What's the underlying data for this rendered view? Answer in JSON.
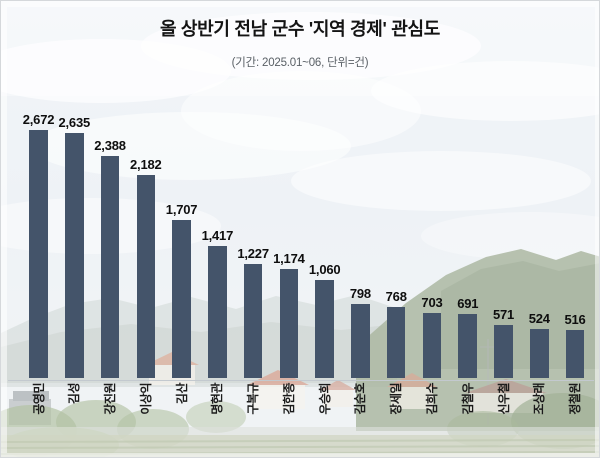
{
  "chart_data": {
    "type": "bar",
    "title": "올 상반기 전남 군수 '지역 경제' 관심도",
    "subtitle": "(기간: 2025.01~06, 단위=건)",
    "categories": [
      "공영민",
      "김성",
      "강진원",
      "이상익",
      "김산",
      "명현관",
      "구복규",
      "김한종",
      "우승희",
      "김순호",
      "장세일",
      "김희수",
      "김철우",
      "신우철",
      "조상래",
      "정철원"
    ],
    "values": [
      2672,
      2635,
      2388,
      2182,
      1707,
      1417,
      1227,
      1174,
      1060,
      798,
      768,
      703,
      691,
      571,
      524,
      516
    ],
    "value_labels": [
      "2,672",
      "2,635",
      "2,388",
      "2,182",
      "1,707",
      "1,417",
      "1,227",
      "1,174",
      "1,060",
      "798",
      "768",
      "703",
      "691",
      "571",
      "524",
      "516"
    ],
    "ylim": [
      0,
      2800
    ],
    "grid": false,
    "legend": null,
    "category_label_rotation": -90,
    "bar_color": "#44546A",
    "axis_line_color": "#c3c9cf",
    "value_label_color": "#0e0e0e",
    "background": "faded rural landscape photo (sky, clouds, mountains, village, fields)"
  }
}
